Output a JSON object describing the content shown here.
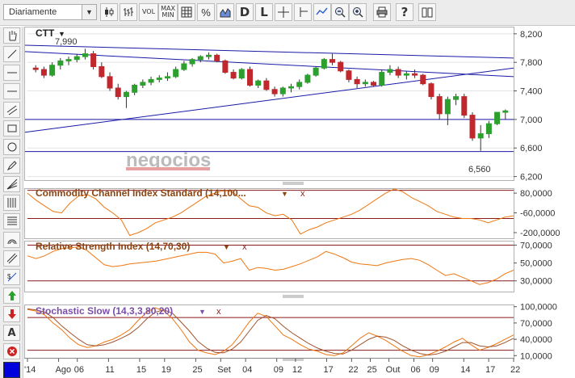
{
  "toolbar": {
    "period": "Diariamente",
    "vol_label": "VOL",
    "maxmin_top": "MAX",
    "maxmin_bottom": "MIN",
    "pct_label": "%",
    "d_label": "D",
    "l_label": "L",
    "help_label": "?"
  },
  "chart": {
    "symbol": "CTT",
    "symbol_arrow": "▼",
    "high_label": "7,990",
    "low_label": "6,560",
    "watermark": "negocios",
    "price_axis": [
      "8,200",
      "7,800",
      "7,400",
      "7,000",
      "6,600",
      "6,200"
    ],
    "x_axis": [
      "'14",
      "Ago",
      "06",
      "11",
      "15",
      "19",
      "25",
      "Set",
      "04",
      "09",
      "12",
      "17",
      "22",
      "25",
      "Out",
      "06",
      "09",
      "14",
      "17",
      "22"
    ],
    "colors": {
      "up": "#2ca02c",
      "down": "#c0282d",
      "line": "#1a1aa6",
      "indicator": "#ee7711",
      "indicator2": "#a0522d",
      "level": "#8b1a1a"
    }
  },
  "indicators": [
    {
      "name": "Commodity Channel Index Standard (14,100...",
      "axis": [
        "80,0000",
        "-60,0000",
        "-200,0000"
      ]
    },
    {
      "name": "Relative Strength Index (14,70,30)",
      "axis": [
        "70,0000",
        "50,0000",
        "30,0000"
      ]
    },
    {
      "name": "Stochastic Slow (14,3,3,80,20)",
      "axis": [
        "100,0000",
        "70,0000",
        "40,0000",
        "10,0000"
      ]
    }
  ],
  "ind_menu_arrow": "▼",
  "ind_close": "x",
  "chart_data": {
    "type": "candlestick",
    "candles": [
      [
        7.72,
        7.76,
        7.66,
        7.7
      ],
      [
        7.7,
        7.74,
        7.58,
        7.62
      ],
      [
        7.62,
        7.8,
        7.6,
        7.76
      ],
      [
        7.76,
        7.86,
        7.7,
        7.82
      ],
      [
        7.82,
        7.88,
        7.76,
        7.84
      ],
      [
        7.84,
        7.92,
        7.8,
        7.88
      ],
      [
        7.88,
        7.99,
        7.84,
        7.92
      ],
      [
        7.92,
        7.96,
        7.7,
        7.74
      ],
      [
        7.74,
        7.8,
        7.58,
        7.6
      ],
      [
        7.6,
        7.66,
        7.4,
        7.44
      ],
      [
        7.44,
        7.5,
        7.28,
        7.32
      ],
      [
        7.32,
        7.4,
        7.16,
        7.38
      ],
      [
        7.38,
        7.5,
        7.34,
        7.48
      ],
      [
        7.48,
        7.56,
        7.44,
        7.52
      ],
      [
        7.52,
        7.6,
        7.48,
        7.56
      ],
      [
        7.56,
        7.62,
        7.52,
        7.58
      ],
      [
        7.58,
        7.66,
        7.54,
        7.6
      ],
      [
        7.6,
        7.74,
        7.58,
        7.7
      ],
      [
        7.7,
        7.82,
        7.68,
        7.78
      ],
      [
        7.78,
        7.86,
        7.74,
        7.84
      ],
      [
        7.84,
        7.9,
        7.8,
        7.88
      ],
      [
        7.88,
        7.94,
        7.84,
        7.9
      ],
      [
        7.9,
        7.92,
        7.8,
        7.82
      ],
      [
        7.82,
        7.84,
        7.64,
        7.66
      ],
      [
        7.66,
        7.7,
        7.56,
        7.58
      ],
      [
        7.58,
        7.72,
        7.56,
        7.7
      ],
      [
        7.7,
        7.74,
        7.46,
        7.48
      ],
      [
        7.48,
        7.56,
        7.44,
        7.54
      ],
      [
        7.54,
        7.58,
        7.4,
        7.42
      ],
      [
        7.42,
        7.46,
        7.32,
        7.36
      ],
      [
        7.36,
        7.46,
        7.32,
        7.44
      ],
      [
        7.44,
        7.5,
        7.38,
        7.46
      ],
      [
        7.46,
        7.56,
        7.42,
        7.52
      ],
      [
        7.52,
        7.64,
        7.5,
        7.62
      ],
      [
        7.62,
        7.74,
        7.6,
        7.72
      ],
      [
        7.72,
        7.86,
        7.7,
        7.84
      ],
      [
        7.84,
        7.92,
        7.76,
        7.8
      ],
      [
        7.8,
        7.82,
        7.66,
        7.68
      ],
      [
        7.68,
        7.7,
        7.52,
        7.56
      ],
      [
        7.56,
        7.6,
        7.44,
        7.5
      ],
      [
        7.5,
        7.56,
        7.46,
        7.52
      ],
      [
        7.52,
        7.54,
        7.46,
        7.48
      ],
      [
        7.48,
        7.7,
        7.46,
        7.66
      ],
      [
        7.66,
        7.76,
        7.62,
        7.7
      ],
      [
        7.7,
        7.74,
        7.58,
        7.62
      ],
      [
        7.62,
        7.68,
        7.56,
        7.64
      ],
      [
        7.64,
        7.7,
        7.58,
        7.62
      ],
      [
        7.62,
        7.64,
        7.48,
        7.5
      ],
      [
        7.5,
        7.52,
        7.28,
        7.32
      ],
      [
        7.32,
        7.36,
        7.0,
        7.08
      ],
      [
        7.08,
        7.32,
        6.92,
        7.28
      ],
      [
        7.28,
        7.36,
        7.2,
        7.32
      ],
      [
        7.32,
        7.36,
        7.02,
        7.06
      ],
      [
        7.06,
        7.1,
        6.7,
        6.74
      ],
      [
        6.74,
        6.92,
        6.56,
        6.8
      ],
      [
        6.8,
        6.98,
        6.74,
        6.94
      ],
      [
        6.94,
        7.1,
        6.92,
        7.1
      ],
      [
        7.1,
        7.14,
        7.0,
        7.12
      ]
    ],
    "price_range": [
      6.15,
      8.3
    ],
    "trendlines": [
      {
        "from": [
          0,
          8.04
        ],
        "to": [
          58,
          7.86
        ]
      },
      {
        "from": [
          0,
          7.95
        ],
        "to": [
          58,
          7.6
        ]
      },
      {
        "from": [
          0,
          6.82
        ],
        "to": [
          58,
          7.72
        ]
      },
      {
        "from": [
          0,
          7.0
        ],
        "to": [
          58,
          7.0
        ]
      },
      {
        "from": [
          0,
          6.55
        ],
        "to": [
          58,
          6.55
        ]
      }
    ],
    "cci": {
      "range": [
        -240,
        115
      ],
      "levels": [
        100,
        -100
      ],
      "values": [
        80,
        30,
        -10,
        -50,
        -60,
        10,
        60,
        70,
        40,
        -20,
        -60,
        -110,
        -220,
        -200,
        -170,
        -130,
        -110,
        -90,
        -60,
        -20,
        20,
        60,
        80,
        100,
        90,
        40,
        -10,
        -20,
        -60,
        -80,
        -70,
        -110,
        -210,
        -180,
        -160,
        -130,
        -110,
        -90,
        -70,
        -40,
        0,
        40,
        80,
        110,
        90,
        50,
        20,
        -10,
        -50,
        -70,
        -90,
        -100,
        -100,
        -110,
        -130,
        -110,
        -90,
        -80
      ]
    },
    "rsi": {
      "range": [
        18,
        75
      ],
      "levels": [
        70,
        30
      ],
      "values": [
        58,
        55,
        58,
        63,
        66,
        67,
        68,
        64,
        56,
        48,
        46,
        47,
        49,
        50,
        51,
        52,
        54,
        56,
        58,
        60,
        62,
        62,
        60,
        50,
        52,
        55,
        42,
        45,
        44,
        42,
        43,
        46,
        49,
        53,
        57,
        63,
        60,
        56,
        51,
        49,
        48,
        47,
        50,
        52,
        54,
        55,
        53,
        48,
        42,
        36,
        38,
        34,
        30,
        26,
        28,
        32,
        38,
        42
      ]
    },
    "stochastic": {
      "range": [
        6,
        104
      ],
      "levels": [
        80,
        20
      ],
      "k": [
        95,
        92,
        85,
        70,
        58,
        42,
        30,
        25,
        28,
        35,
        40,
        48,
        58,
        75,
        90,
        98,
        92,
        78,
        58,
        35,
        20,
        15,
        12,
        18,
        30,
        50,
        72,
        88,
        82,
        65,
        48,
        40,
        30,
        22,
        18,
        12,
        10,
        15,
        28,
        42,
        52,
        46,
        38,
        28,
        18,
        10,
        8,
        12,
        18,
        26,
        35,
        42,
        30,
        20,
        25,
        32,
        40,
        48
      ],
      "d": [
        96,
        94,
        90,
        80,
        65,
        52,
        40,
        30,
        28,
        30,
        35,
        42,
        50,
        62,
        78,
        90,
        94,
        88,
        72,
        55,
        36,
        24,
        16,
        15,
        22,
        35,
        55,
        75,
        84,
        78,
        64,
        52,
        42,
        32,
        24,
        18,
        14,
        13,
        20,
        30,
        40,
        46,
        44,
        38,
        28,
        20,
        14,
        11,
        13,
        18,
        26,
        34,
        34,
        28,
        26,
        28,
        34,
        42
      ]
    },
    "x_ticks_index": [
      0,
      5,
      8,
      13,
      18,
      22,
      27,
      31,
      35,
      40,
      43,
      48,
      52,
      55,
      58,
      62,
      65,
      70,
      74,
      78
    ]
  }
}
